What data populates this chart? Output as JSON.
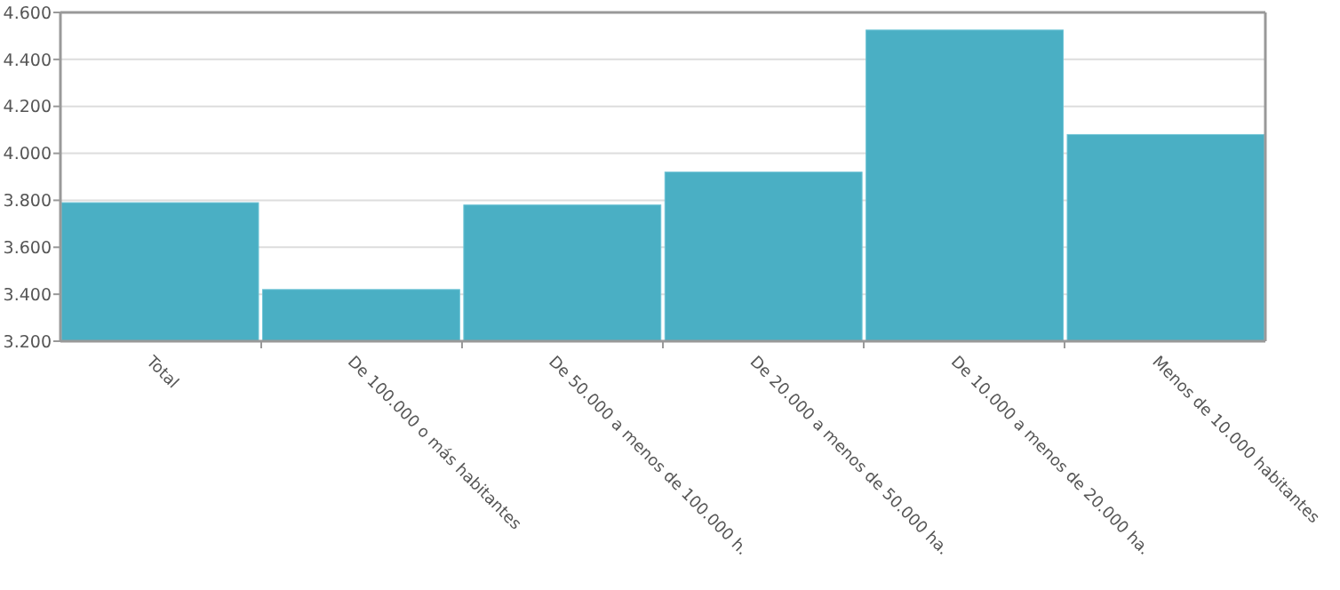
{
  "chart_data": {
    "type": "bar",
    "categories": [
      "Total",
      "De 100.000 o más habitantes",
      "De 50.000 a menos de 100.000 h.",
      "De 20.000 a menos de 50.000 ha.",
      "De 10.000 a menos de 20.000 ha.",
      "Menos de 10.000 habitantes"
    ],
    "values": [
      3790,
      3420,
      3780,
      3920,
      4525,
      4080
    ],
    "color": "#4aafc4",
    "ylim": [
      3200,
      4600
    ],
    "yticks": [
      {
        "value": 3200,
        "label": "3.200"
      },
      {
        "value": 3400,
        "label": "3.400"
      },
      {
        "value": 3600,
        "label": "3.600"
      },
      {
        "value": 3800,
        "label": "3.800"
      },
      {
        "value": 4000,
        "label": "4.000"
      },
      {
        "value": 4200,
        "label": "4.200"
      },
      {
        "value": 4400,
        "label": "4.400"
      },
      {
        "value": 4600,
        "label": "4.600"
      }
    ],
    "grid": "y"
  }
}
